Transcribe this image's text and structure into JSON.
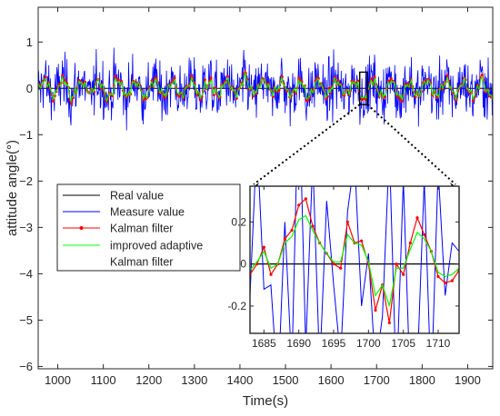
{
  "chart_data": [
    {
      "type": "line",
      "xlabel": "Time(s)",
      "ylabel": "attitude angle(°)",
      "xlim": [
        957,
        1955
      ],
      "ylim": [
        -6.05,
        1.75
      ],
      "xticks": [
        1000,
        1100,
        1200,
        1300,
        1400,
        1500,
        1600,
        1700,
        1800,
        1900
      ],
      "yticks": [
        1,
        0,
        -1,
        -2,
        -3,
        -4,
        -5,
        -6
      ],
      "grid": false,
      "legend_position": "lower-left",
      "series": [
        {
          "name": "Real value",
          "color": "#000000",
          "y_constant": 0
        },
        {
          "name": "Measure value",
          "color": "#0000ff",
          "approx_range": [
            -1.3,
            1.6
          ],
          "points": 900
        },
        {
          "name": "Kalman filter",
          "color": "#ff0000",
          "marker": "dot",
          "approx_range": [
            -0.35,
            0.35
          ]
        },
        {
          "name": "improved adaptive Kalman filter",
          "color": "#00ff00",
          "approx_range": [
            -0.3,
            0.3
          ]
        }
      ],
      "legend": [
        "Real value",
        "Measure value",
        "Kalman filter",
        "improved adaptive",
        "Kalman filter"
      ],
      "zoom_box": {
        "x": [
          1663,
          1680
        ],
        "y": [
          -0.35,
          0.35
        ]
      }
    },
    {
      "type": "line",
      "role": "inset",
      "xlim": [
        1683,
        1713
      ],
      "ylim": [
        -0.33,
        0.37
      ],
      "xticks": [
        1685,
        1690,
        1695,
        1700,
        1705,
        1710
      ],
      "yticks": [
        0.2,
        0,
        -0.2
      ],
      "ytick_labels": [
        "0.2",
        "0",
        "-0.2"
      ],
      "x": [
        1683,
        1684,
        1685,
        1686,
        1687,
        1688,
        1689,
        1690,
        1691,
        1692,
        1693,
        1694,
        1695,
        1696,
        1697,
        1698,
        1699,
        1700,
        1701,
        1702,
        1703,
        1704,
        1705,
        1706,
        1707,
        1708,
        1709,
        1710,
        1711,
        1712,
        1713
      ],
      "series": [
        {
          "name": "Real value",
          "color": "#000000",
          "values": [
            0,
            0,
            0,
            0,
            0,
            0,
            0,
            0,
            0,
            0,
            0,
            0,
            0,
            0,
            0,
            0,
            0,
            0,
            0,
            0,
            0,
            0,
            0,
            0,
            0,
            0,
            0,
            0,
            0,
            0,
            0
          ]
        },
        {
          "name": "Measure value",
          "color": "#0000ff",
          "values": [
            -0.15,
            0.6,
            -0.12,
            -0.1,
            -0.6,
            0.2,
            -0.5,
            0.9,
            -0.4,
            0.5,
            -0.5,
            0.3,
            -0.1,
            -0.45,
            0.25,
            0.5,
            -0.2,
            0.05,
            -0.5,
            -0.25,
            0.55,
            -0.6,
            0.4,
            -0.6,
            -0.5,
            0.4,
            -0.6,
            0.45,
            -0.15,
            0.1,
            0.06
          ]
        },
        {
          "name": "Kalman filter",
          "color": "#ff0000",
          "values": [
            -0.05,
            0.0,
            0.08,
            -0.05,
            0.0,
            0.12,
            0.16,
            0.28,
            0.31,
            0.18,
            0.1,
            0.05,
            0.0,
            -0.02,
            0.2,
            0.1,
            0.11,
            0.0,
            -0.22,
            -0.1,
            -0.28,
            0.0,
            -0.05,
            0.1,
            0.22,
            0.14,
            0.06,
            -0.06,
            -0.09,
            -0.08,
            -0.03
          ]
        },
        {
          "name": "improved adaptive Kalman filter",
          "color": "#00ff00",
          "values": [
            -0.03,
            0.01,
            0.06,
            -0.02,
            0.0,
            0.1,
            0.13,
            0.21,
            0.23,
            0.16,
            0.1,
            0.05,
            0.01,
            0.01,
            0.14,
            0.1,
            0.09,
            0.01,
            -0.15,
            -0.1,
            -0.2,
            -0.02,
            -0.02,
            0.07,
            0.15,
            0.12,
            0.06,
            -0.04,
            -0.06,
            -0.05,
            -0.02
          ]
        }
      ]
    }
  ]
}
